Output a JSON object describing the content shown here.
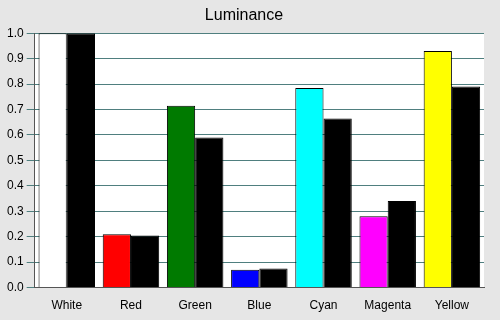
{
  "chart_data": {
    "type": "bar",
    "title": "Luminance",
    "categories": [
      "White",
      "Red",
      "Green",
      "Blue",
      "Cyan",
      "Magenta",
      "Yellow"
    ],
    "series": [
      {
        "colors": [
          "#ffffff",
          "#ff0000",
          "#007a00",
          "#0000ff",
          "#00ffff",
          "#ff00ff",
          "#ffff00"
        ],
        "values": [
          1.0,
          0.21,
          0.715,
          0.07,
          0.785,
          0.28,
          0.93
        ]
      },
      {
        "color": "#000000",
        "values": [
          1.0,
          0.205,
          0.59,
          0.075,
          0.665,
          0.34,
          0.79
        ]
      }
    ],
    "ylim": [
      0,
      1
    ],
    "yticks": [
      {
        "value": 0,
        "label": "0.0"
      },
      0.1,
      0.2,
      0.3,
      0.4,
      0.5,
      0.6,
      0.7,
      0.8,
      0.9,
      {
        "value": 1,
        "label": "1.0"
      }
    ],
    "grid": true
  }
}
